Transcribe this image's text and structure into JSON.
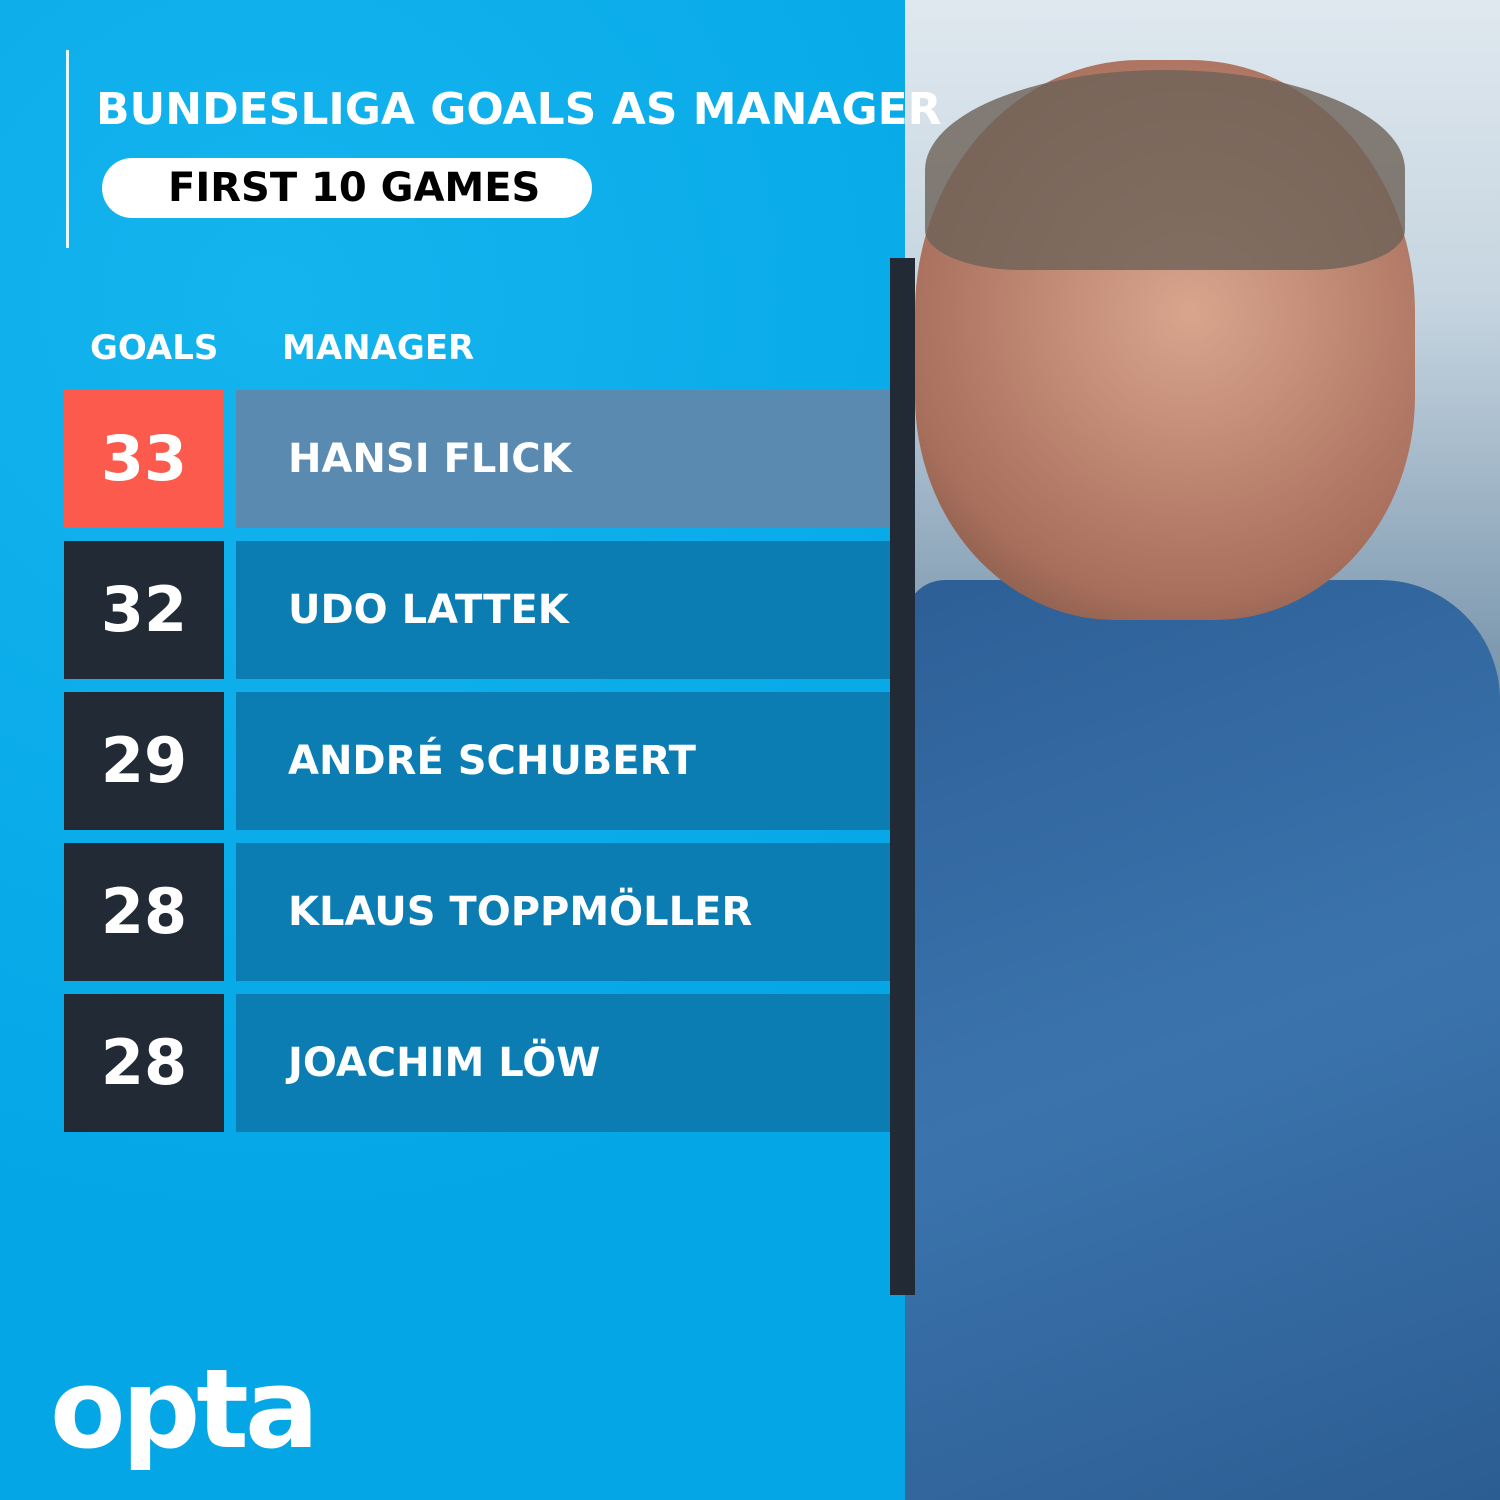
{
  "title": "BUNDESLIGA GOALS AS MANAGER",
  "subtitle": "FIRST 10 GAMES",
  "columns": {
    "goals": "GOALS",
    "manager": "MANAGER"
  },
  "brand": "opta",
  "colors": {
    "background": "#0aaeea",
    "highlight_goals": "#fb5a4c",
    "highlight_name": "#5b8ab0",
    "goals_box": "#212a35",
    "name_box": "#0b7db3"
  },
  "chart_data": {
    "type": "table",
    "title": "BUNDESLIGA GOALS AS MANAGER",
    "subtitle": "FIRST 10 GAMES",
    "columns": [
      "GOALS",
      "MANAGER"
    ],
    "rows": [
      {
        "goals": "33",
        "manager": "HANSI FLICK",
        "highlight": true
      },
      {
        "goals": "32",
        "manager": "UDO LATTEK",
        "highlight": false
      },
      {
        "goals": "29",
        "manager": "ANDRÉ SCHUBERT",
        "highlight": false
      },
      {
        "goals": "28",
        "manager": "KLAUS TOPPMÖLLER",
        "highlight": false
      },
      {
        "goals": "28",
        "manager": "JOACHIM LÖW",
        "highlight": false
      }
    ]
  }
}
